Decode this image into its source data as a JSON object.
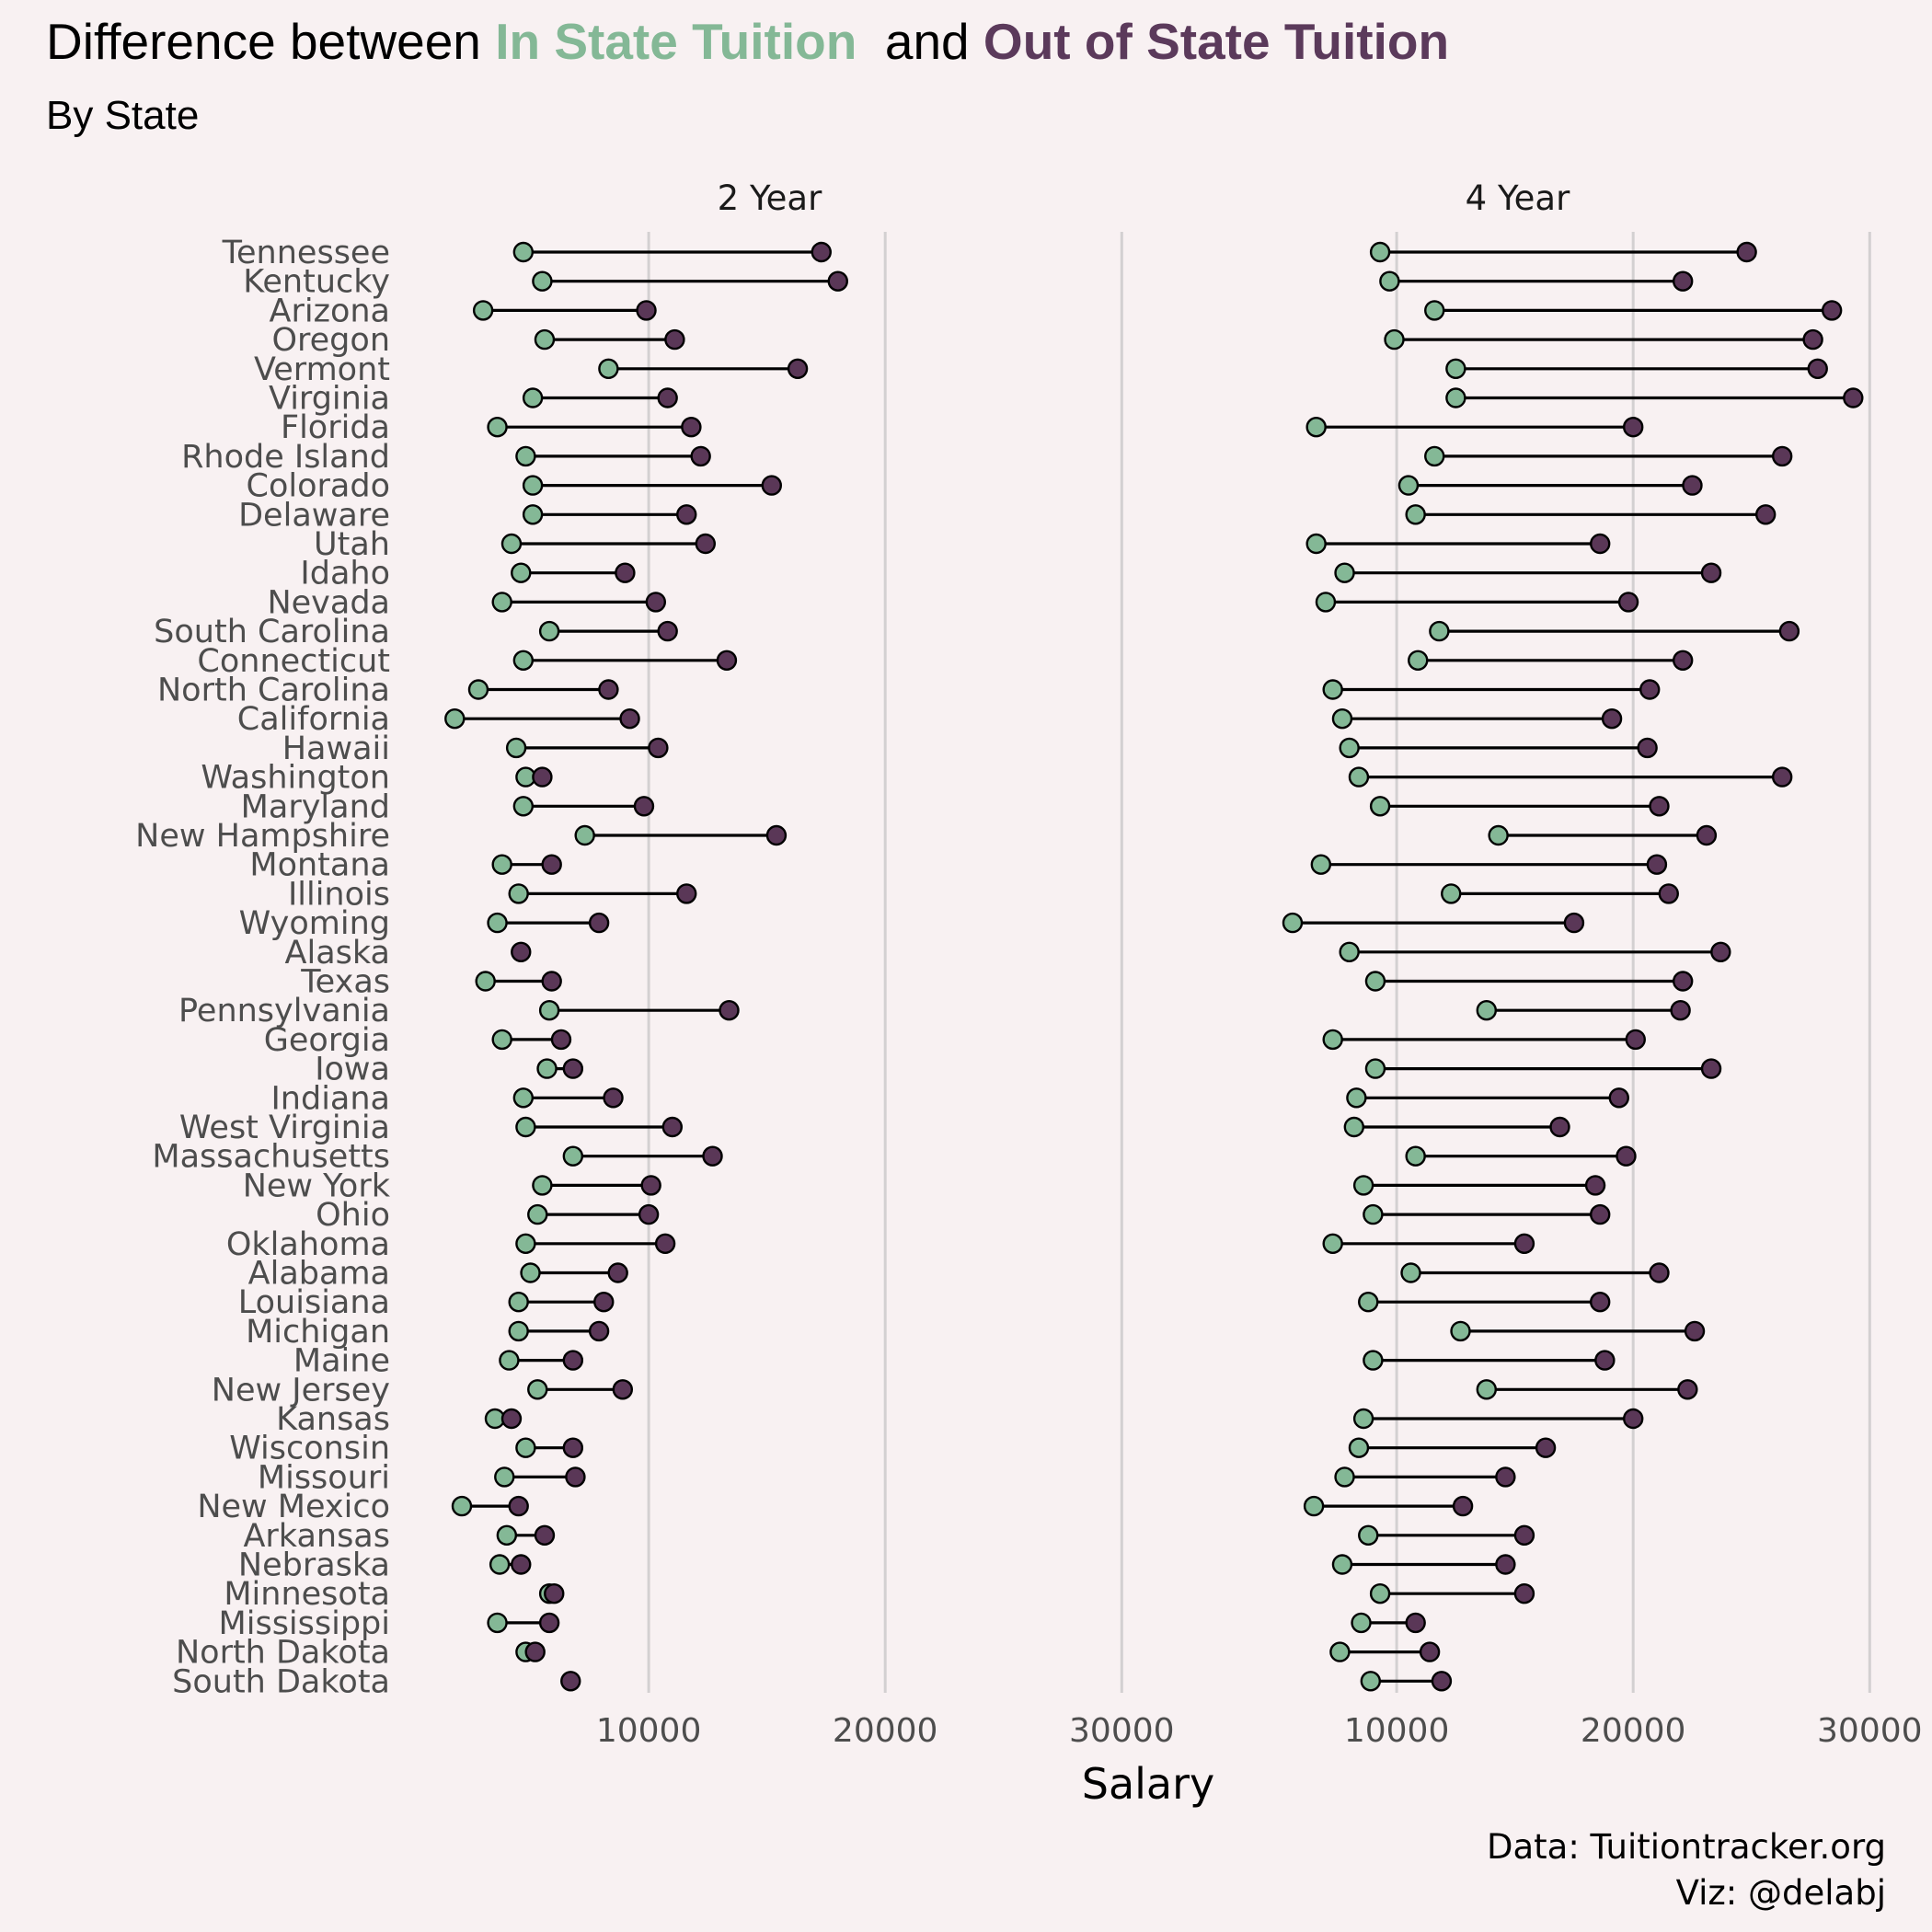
{
  "title": {
    "prefix": "Difference between ",
    "in_state": "In State Tuition",
    "middle": "  and ",
    "out_state": "Out of State Tuition"
  },
  "subtitle": "By State",
  "caption": [
    "Data:  Tuitiontracker.org",
    "Viz: @delabj"
  ],
  "colors": {
    "background": "#f8f1f2",
    "in_state": "#84b896",
    "out_state": "#5b3a5b",
    "out_state_point": "#5a3757",
    "segment": "#000000",
    "grid": "#d3d0d1",
    "text": "#000000",
    "axis_text": "#4d4d4d"
  },
  "chart_data": {
    "type": "dumbbell",
    "xlabel": "Salary",
    "ylabel": "",
    "grid": "vertical major lines only",
    "legend": "none (series colors encoded in title)",
    "xlim": [
      0,
      31000
    ],
    "xticks": [
      10000,
      20000,
      30000
    ],
    "series_names": [
      "In State Tuition",
      "Out of State Tuition"
    ],
    "categories": [
      "Tennessee",
      "Kentucky",
      "Arizona",
      "Oregon",
      "Vermont",
      "Virginia",
      "Florida",
      "Rhode Island",
      "Colorado",
      "Delaware",
      "Utah",
      "Idaho",
      "Nevada",
      "South Carolina",
      "Connecticut",
      "North Carolina",
      "California",
      "Hawaii",
      "Washington",
      "Maryland",
      "New Hampshire",
      "Montana",
      "Illinois",
      "Wyoming",
      "Alaska",
      "Texas",
      "Pennsylvania",
      "Georgia",
      "Iowa",
      "Indiana",
      "West Virginia",
      "Massachusetts",
      "New York",
      "Ohio",
      "Oklahoma",
      "Alabama",
      "Louisiana",
      "Michigan",
      "Maine",
      "New Jersey",
      "Kansas",
      "Wisconsin",
      "Missouri",
      "New Mexico",
      "Arkansas",
      "Nebraska",
      "Minnesota",
      "Mississippi",
      "North Dakota",
      "South Dakota"
    ],
    "panels": [
      {
        "name": "2 Year",
        "in_state": [
          4700,
          5500,
          3000,
          5600,
          8300,
          5100,
          3600,
          4800,
          5100,
          5100,
          4200,
          4600,
          3800,
          5800,
          4700,
          2800,
          1800,
          4400,
          4800,
          4700,
          7300,
          3800,
          4500,
          3600,
          null,
          3100,
          5800,
          3800,
          5700,
          4700,
          4800,
          6800,
          5500,
          5300,
          4800,
          5000,
          4500,
          4500,
          4100,
          5300,
          3500,
          4800,
          3900,
          2100,
          4000,
          3700,
          5800,
          3600,
          4800,
          null
        ],
        "out_state": [
          17300,
          18000,
          9900,
          11100,
          16300,
          10800,
          11800,
          12200,
          15200,
          11600,
          12400,
          9000,
          10300,
          10800,
          13300,
          8300,
          9200,
          10400,
          5500,
          9800,
          15400,
          5900,
          11600,
          7900,
          4600,
          5900,
          13400,
          6300,
          6800,
          8500,
          11000,
          12700,
          10100,
          10000,
          10700,
          8700,
          8100,
          7900,
          6800,
          8900,
          4200,
          6800,
          6900,
          4500,
          5600,
          4600,
          6000,
          5800,
          5200,
          6700
        ]
      },
      {
        "name": "4 Year",
        "in_state": [
          9300,
          9700,
          11600,
          9900,
          12500,
          12500,
          6600,
          11600,
          10500,
          10800,
          6600,
          7800,
          7000,
          11800,
          10900,
          7300,
          7700,
          8000,
          8400,
          9300,
          14300,
          6800,
          12300,
          5600,
          8000,
          9100,
          13800,
          7300,
          9100,
          8300,
          8200,
          10800,
          8600,
          9000,
          7300,
          10600,
          8800,
          12700,
          9000,
          13800,
          8600,
          8400,
          7800,
          6500,
          8800,
          7700,
          9300,
          8500,
          7600,
          8900
        ],
        "out_state": [
          24800,
          22100,
          28400,
          27600,
          27800,
          29300,
          20000,
          26300,
          22500,
          25600,
          18600,
          23300,
          19800,
          26600,
          22100,
          20700,
          19100,
          20600,
          26300,
          21100,
          23100,
          21000,
          21500,
          17500,
          23700,
          22100,
          22000,
          20100,
          23300,
          19400,
          16900,
          19700,
          18400,
          18600,
          15400,
          21100,
          18600,
          22600,
          18800,
          22300,
          20000,
          16300,
          14600,
          12800,
          15400,
          14600,
          15400,
          10800,
          11400,
          11900
        ]
      }
    ]
  }
}
